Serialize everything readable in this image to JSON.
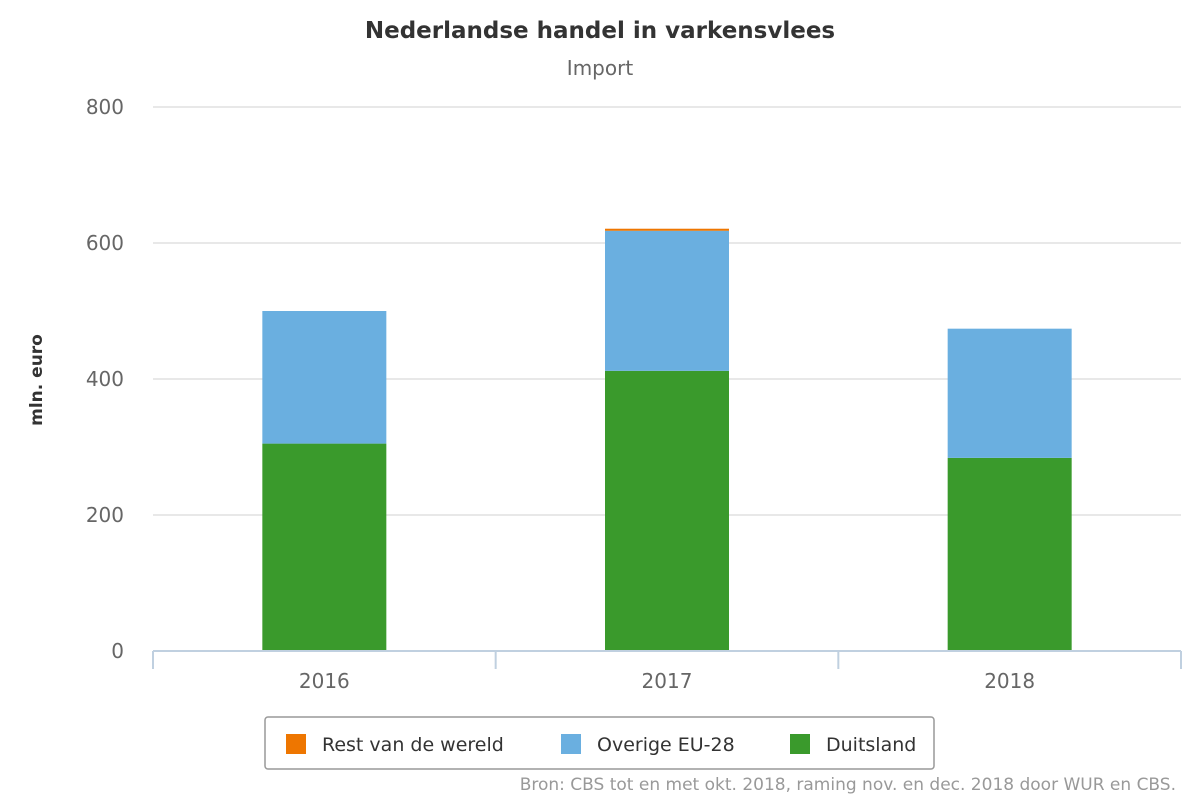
{
  "chart_data": {
    "type": "bar",
    "stacked": true,
    "title": "Nederlandse handel in varkensvlees",
    "subtitle": "Import",
    "ylabel": "mln. euro",
    "xlabel": "",
    "categories": [
      "2016",
      "2017",
      "2018"
    ],
    "ylim": [
      0,
      800
    ],
    "yticks": [
      0,
      200,
      400,
      600,
      800
    ],
    "grid": true,
    "legend_position": "bottom",
    "series": [
      {
        "name": "Duitsland",
        "color": "#3a9a2c",
        "values": [
          305,
          412,
          284
        ]
      },
      {
        "name": "Overige EU-28",
        "color": "#6aafe0",
        "values": [
          195,
          206,
          190
        ]
      },
      {
        "name": "Rest van de wereld",
        "color": "#ee7600",
        "values": [
          0,
          3,
          0
        ]
      }
    ],
    "legend_order": [
      "Rest van de wereld",
      "Overige EU-28",
      "Duitsland"
    ],
    "source": "Bron: CBS tot en met okt. 2018, raming nov. en dec. 2018 door WUR en CBS."
  }
}
